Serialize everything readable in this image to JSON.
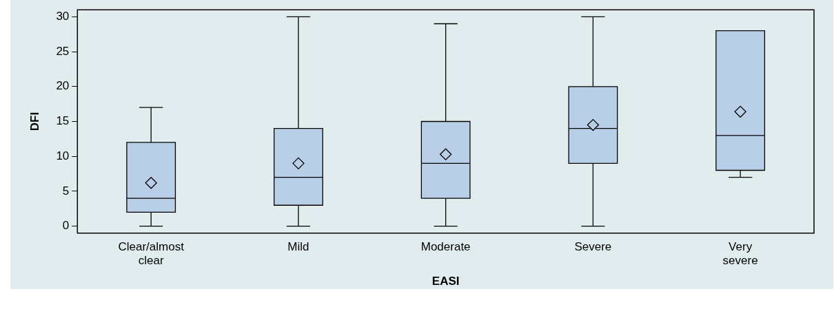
{
  "chart_data": {
    "type": "box",
    "xlabel": "EASI",
    "ylabel": "DFI",
    "categories": [
      "Clear/almost clear",
      "Mild",
      "Moderate",
      "Severe",
      "Very severe"
    ],
    "ylim": [
      -1,
      31
    ],
    "yticks": [
      0,
      5,
      10,
      15,
      20,
      25,
      30
    ],
    "grid": false,
    "legend": false,
    "marker": "diamond",
    "series": [
      {
        "color": "#b9cfe7",
        "boxes": [
          {
            "low": 0,
            "q1": 2,
            "median": 4,
            "q3": 12,
            "high": 17,
            "mean": 6.2
          },
          {
            "low": 0,
            "q1": 3,
            "median": 7,
            "q3": 14,
            "high": 30,
            "mean": 9
          },
          {
            "low": 0,
            "q1": 4,
            "median": 9,
            "q3": 15,
            "high": 29,
            "mean": 10.3
          },
          {
            "low": 0,
            "q1": 9,
            "median": 14,
            "q3": 20,
            "high": 30,
            "mean": 14.5
          },
          {
            "low": 7,
            "q1": 8,
            "median": 13,
            "q3": 28,
            "high": 28,
            "mean": 16.4
          }
        ]
      }
    ]
  }
}
